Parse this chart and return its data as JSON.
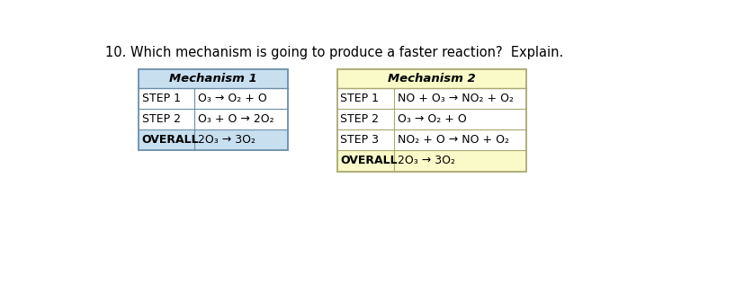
{
  "title": "10. Which mechanism is going to produce a faster reaction?  Explain.",
  "title_fontsize": 10.5,
  "mech1": {
    "header": "Mechanism 1",
    "header_bg": "#C8DFF0",
    "body_bg": "#FFFFFF",
    "border_color": "#6A8FA8",
    "rows": [
      [
        "STEP 1",
        "O₃ → O₂ + O"
      ],
      [
        "STEP 2",
        "O₃ + O → 2O₂"
      ],
      [
        "OVERALL",
        "2O₃ → 3O₂"
      ]
    ]
  },
  "mech2": {
    "header": "Mechanism 2",
    "header_bg": "#FAFAC8",
    "body_bg": "#FFFFFF",
    "border_color": "#A8A870",
    "rows": [
      [
        "STEP 1",
        "NO + O₃ → NO₂ + O₂"
      ],
      [
        "STEP 2",
        "O₃ → O₂ + O"
      ],
      [
        "STEP 3",
        "NO₂ + O → NO + O₂"
      ],
      [
        "OVERALL",
        "2O₃ → 3O₂"
      ]
    ]
  },
  "background_color": "#FFFFFF",
  "font_family": "DejaVu Sans"
}
